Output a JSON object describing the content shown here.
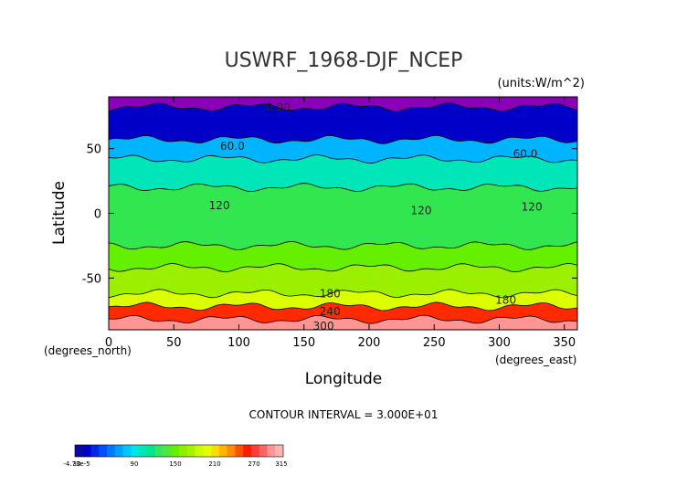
{
  "chart_data": {
    "type": "heatmap",
    "title": "USWRF_1968-DJF_NCEP",
    "units_label": "(units:W/m^2)",
    "xlabel": "Longitude",
    "ylabel": "Latitude",
    "x_unit_label": "(degrees_east)",
    "y_unit_label": "(degrees_north)",
    "xlim": [
      0,
      360
    ],
    "ylim": [
      -90,
      90
    ],
    "x_ticks": [
      0,
      50,
      100,
      150,
      200,
      250,
      300,
      350
    ],
    "y_ticks": [
      -50,
      0,
      50
    ],
    "contour_interval_text": "CONTOUR INTERVAL = 3.000E+01",
    "contour_labels": [
      {
        "text": "0.00",
        "lon": 130,
        "lat": 82
      },
      {
        "text": "60.0",
        "lon": 95,
        "lat": 52
      },
      {
        "text": "60.0",
        "lon": 320,
        "lat": 46
      },
      {
        "text": "120",
        "lon": 85,
        "lat": 6
      },
      {
        "text": "120",
        "lon": 240,
        "lat": 2
      },
      {
        "text": "120",
        "lon": 325,
        "lat": 5
      },
      {
        "text": "180",
        "lon": 170,
        "lat": -62
      },
      {
        "text": "180",
        "lon": 305,
        "lat": -67
      },
      {
        "text": "240",
        "lon": 170,
        "lat": -76
      },
      {
        "text": "300",
        "lon": 165,
        "lat": -87
      }
    ],
    "lat_bands": [
      {
        "lat_from": 90,
        "lat_to": 82,
        "value": 0,
        "color": "#8a00b8"
      },
      {
        "lat_from": 82,
        "lat_to": 57,
        "value": 30,
        "color": "#0000c8"
      },
      {
        "lat_from": 57,
        "lat_to": 42,
        "value": 75,
        "color": "#00b4ff"
      },
      {
        "lat_from": 42,
        "lat_to": 20,
        "value": 105,
        "color": "#00e6b8"
      },
      {
        "lat_from": 20,
        "lat_to": -25,
        "value": 135,
        "color": "#32e650"
      },
      {
        "lat_from": -25,
        "lat_to": -42,
        "value": 150,
        "color": "#64f000"
      },
      {
        "lat_from": -42,
        "lat_to": -62,
        "value": 165,
        "color": "#9bf000"
      },
      {
        "lat_from": -62,
        "lat_to": -72,
        "value": 195,
        "color": "#dcff00"
      },
      {
        "lat_from": -72,
        "lat_to": -82,
        "value": 270,
        "color": "#ff2a00"
      },
      {
        "lat_from": -82,
        "lat_to": -90,
        "value": 315,
        "color": "#ff9494"
      }
    ],
    "colorbar": {
      "labels": [
        "-4.73e-5",
        "30",
        "90",
        "150",
        "210",
        "270",
        "315"
      ],
      "colors": [
        "#0a0aa0",
        "#0000c8",
        "#0028e6",
        "#0050ff",
        "#0078ff",
        "#00a0ff",
        "#00c8ff",
        "#00e6e6",
        "#00e6b4",
        "#00e68c",
        "#32e664",
        "#50e63c",
        "#64f000",
        "#8cf000",
        "#aaf000",
        "#c8ff00",
        "#e6ff00",
        "#ffdc00",
        "#ffb400",
        "#ff8c00",
        "#ff5000",
        "#ff1e00",
        "#ff3c3c",
        "#ff6464",
        "#ff9696",
        "#ffb4b4"
      ]
    }
  }
}
